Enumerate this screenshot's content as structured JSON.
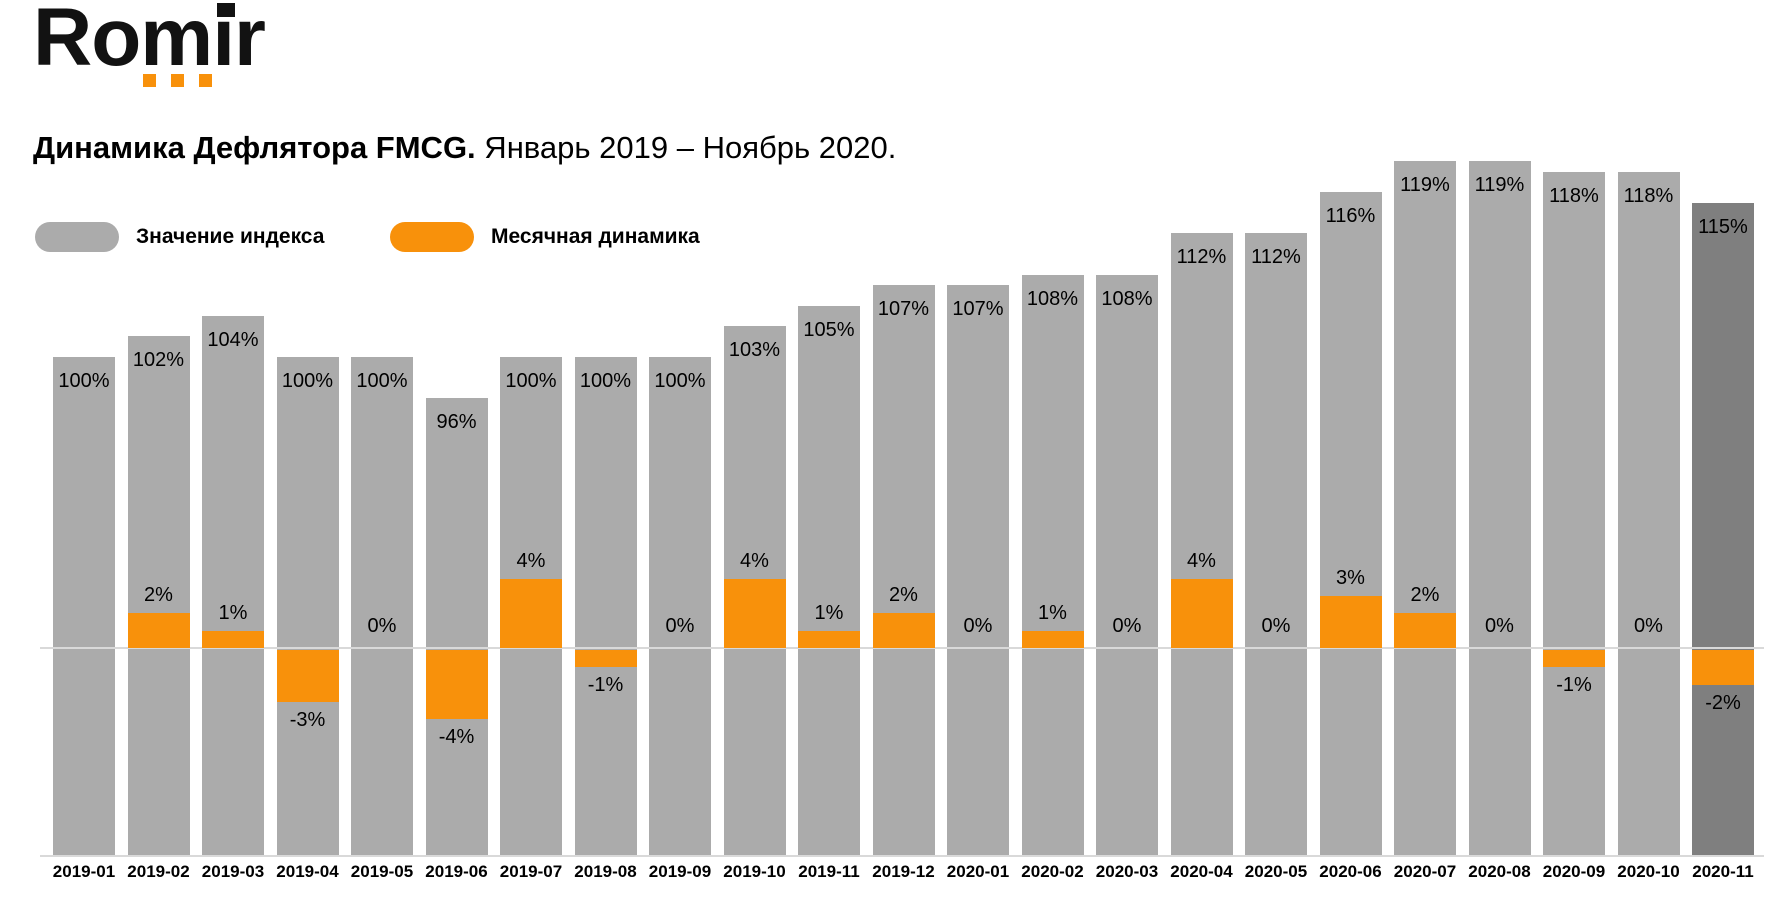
{
  "logo": {
    "text": "Romir"
  },
  "title": {
    "bold": "Динамика Дефлятора FMCG.",
    "regular": " Январь 2019 – Ноябрь 2020."
  },
  "legend": [
    {
      "label": "Значение индекса",
      "color": "#ABABAB"
    },
    {
      "label": "Месячная динамика",
      "color": "#F8910B"
    }
  ],
  "colors": {
    "index_bar": "#ABABAB",
    "index_bar_highlight": "#7F7F7F",
    "dynamics_bar": "#F8910B",
    "axis_line": "#D9D9D9",
    "text": "#000000",
    "background": "#FFFFFF"
  },
  "chart_data": {
    "type": "bar",
    "title": "Динамика Дефлятора FMCG. Январь 2019 – Ноябрь 2020.",
    "categories": [
      "2019-01",
      "2019-02",
      "2019-03",
      "2019-04",
      "2019-05",
      "2019-06",
      "2019-07",
      "2019-08",
      "2019-09",
      "2019-10",
      "2019-11",
      "2019-12",
      "2020-01",
      "2020-02",
      "2020-03",
      "2020-04",
      "2020-05",
      "2020-06",
      "2020-07",
      "2020-08",
      "2020-09",
      "2020-10",
      "2020-11"
    ],
    "series": [
      {
        "name": "Значение индекса",
        "unit": "%",
        "color": "#ABABAB",
        "values": [
          100,
          102,
          104,
          100,
          100,
          96,
          100,
          100,
          100,
          103,
          105,
          107,
          107,
          108,
          108,
          112,
          112,
          116,
          119,
          119,
          118,
          118,
          115
        ]
      },
      {
        "name": "Месячная динамика",
        "unit": "%",
        "color": "#F8910B",
        "values": [
          null,
          2,
          1,
          -3,
          0,
          -4,
          4,
          -1,
          0,
          4,
          1,
          2,
          0,
          1,
          0,
          4,
          0,
          3,
          2,
          0,
          -1,
          0,
          -2
        ]
      }
    ],
    "highlight_category": "2020-11",
    "highlight_color": "#7F7F7F",
    "xlabel": "",
    "ylabel": "",
    "axes_hidden": true,
    "legend_position": "top-left",
    "grid": false,
    "notes": "Gray bars = index value (labels inside bar tops). Orange bars = month-over-month dynamics plotted around a light-gray zero line; zero values show label only. First month has no dynamics value. Last month bar is highlighted dark gray."
  }
}
